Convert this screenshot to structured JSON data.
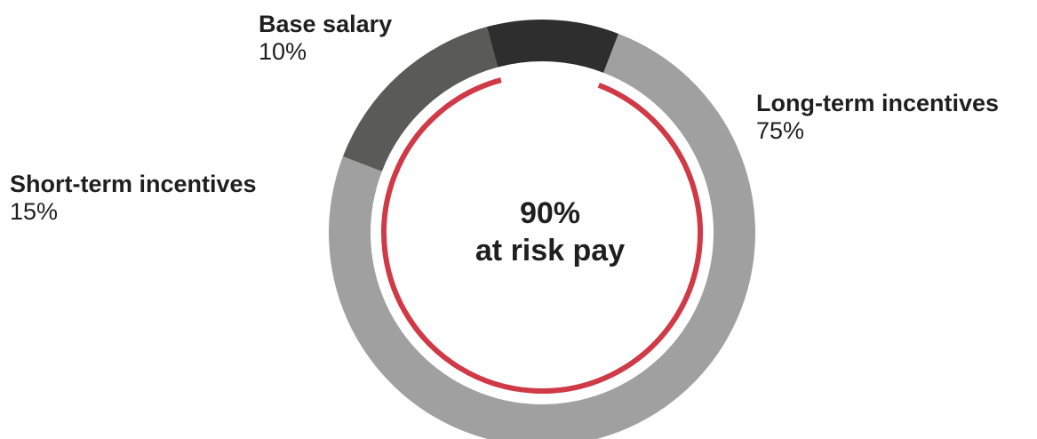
{
  "chart_data": {
    "type": "pie",
    "style": "donut",
    "slices": [
      {
        "label": "Base salary",
        "value": 10,
        "value_text": "10%",
        "color": "#2e2e2e"
      },
      {
        "label": "Long-term incentives",
        "value": 75,
        "value_text": "75%",
        "color": "#a0a0a0"
      },
      {
        "label": "Short-term incentives",
        "value": 15,
        "value_text": "15%",
        "color": "#5a5a59"
      }
    ],
    "inner_arc": {
      "value": 90,
      "color": "#cf3a46"
    },
    "center_text": {
      "value": "90%",
      "caption": "at risk pay"
    }
  }
}
